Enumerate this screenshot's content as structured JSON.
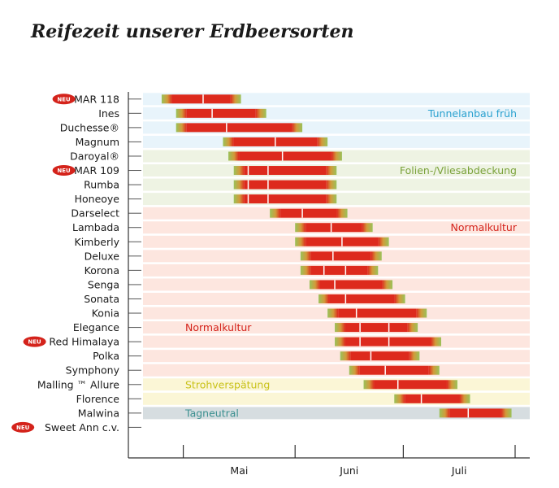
{
  "chart_data": {
    "type": "bar",
    "title": "Reifezeit unserer Erdbeersorten",
    "new_badge": "NEU",
    "months": [
      {
        "label": "Mai",
        "start": 0,
        "end": 31
      },
      {
        "label": "Juni",
        "start": 31,
        "end": 61
      },
      {
        "label": "Juli",
        "start": 61,
        "end": 92
      }
    ],
    "x_domain": [
      -7,
      92
    ],
    "sections": [
      {
        "label": "Tunnelanbau früh",
        "rows": [
          0,
          3
        ],
        "band_color": "#e8f4fb",
        "text_color": "#2aa1cf"
      },
      {
        "label": "Folien-/Vliesabdeckung",
        "rows": [
          4,
          7
        ],
        "band_color": "#eef3e3",
        "text_color": "#7aa23a"
      },
      {
        "label": "Normalkultur",
        "rows": [
          8,
          19
        ],
        "band_color": "#fde6df",
        "text_color": "#d4231b"
      },
      {
        "label": "Strohverspätung",
        "rows": [
          20,
          21
        ],
        "band_color": "#fbf6d6",
        "text_color": "#c9c21a"
      },
      {
        "label": "Tagneutral",
        "rows": [
          22,
          22
        ],
        "band_color": "#d6dde0",
        "text_color": "#3a8f8f"
      }
    ],
    "secondary_label": {
      "label": "Normalkultur",
      "text_color": "#d4231b"
    },
    "series": [
      {
        "name": "MAR 118",
        "new": true,
        "start": -6,
        "mid": [
          5.5
        ],
        "end": 16
      },
      {
        "name": "Ines",
        "new": false,
        "start": -2,
        "mid": [
          8
        ],
        "end": 23
      },
      {
        "name": "Duchesse®",
        "new": false,
        "start": -2,
        "mid": [
          12
        ],
        "end": 33
      },
      {
        "name": "Magnum",
        "new": false,
        "start": 11,
        "mid": [
          25.5
        ],
        "end": 40
      },
      {
        "name": "Daroyal®",
        "new": false,
        "start": 12.5,
        "mid": [
          27.5
        ],
        "end": 44
      },
      {
        "name": "MAR 109",
        "new": true,
        "start": 14,
        "mid": [
          18,
          23.5
        ],
        "end": 42.5
      },
      {
        "name": "Rumba",
        "new": false,
        "start": 14,
        "mid": [
          18,
          23.5
        ],
        "end": 42.5
      },
      {
        "name": "Honeoye",
        "new": false,
        "start": 14,
        "mid": [
          18,
          23.5
        ],
        "end": 42.5
      },
      {
        "name": "Darselect",
        "new": false,
        "start": 24,
        "mid": [
          33
        ],
        "end": 45.5
      },
      {
        "name": "Lambada",
        "new": false,
        "start": 31,
        "mid": [
          41
        ],
        "end": 52.5
      },
      {
        "name": "Kimberly",
        "new": false,
        "start": 31,
        "mid": [
          44
        ],
        "end": 57
      },
      {
        "name": "Deluxe",
        "new": false,
        "start": 32.5,
        "mid": [
          41.5
        ],
        "end": 55
      },
      {
        "name": "Korona",
        "new": false,
        "start": 32.5,
        "mid": [
          39,
          45
        ],
        "end": 54
      },
      {
        "name": "Senga",
        "new": false,
        "start": 35,
        "mid": [
          42
        ],
        "end": 58
      },
      {
        "name": "Sonata",
        "new": false,
        "start": 37.5,
        "mid": [
          45
        ],
        "end": 61.5
      },
      {
        "name": "Konia",
        "new": false,
        "start": 40,
        "mid": [
          48
        ],
        "end": 67.5
      },
      {
        "name": "Elegance",
        "new": false,
        "start": 42,
        "mid": [
          49,
          57
        ],
        "end": 65
      },
      {
        "name": "Red Himalaya",
        "new": true,
        "start": 42,
        "mid": [
          49,
          57
        ],
        "end": 71.5
      },
      {
        "name": "Polka",
        "new": false,
        "start": 43.5,
        "mid": [
          52
        ],
        "end": 65.5
      },
      {
        "name": "Symphony",
        "new": false,
        "start": 46,
        "mid": [
          56
        ],
        "end": 71
      },
      {
        "name": "Malling ™ Allure",
        "new": false,
        "start": 50,
        "mid": [
          59.5
        ],
        "end": 76
      },
      {
        "name": "Florence",
        "new": false,
        "start": 58.5,
        "mid": [
          66
        ],
        "end": 79.5
      },
      {
        "name": "Malwina",
        "new": false,
        "start": 71,
        "mid": [
          79
        ],
        "end": 91
      }
    ]
  }
}
